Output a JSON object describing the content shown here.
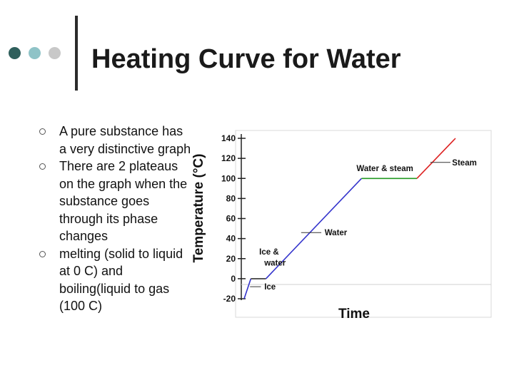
{
  "slide": {
    "title": "Heating Curve for Water",
    "bullets": [
      "A pure substance has a very distinctive graph",
      "There are 2 plateaus on the graph when the substance goes through its phase changes",
      "melting (solid to liquid  at 0 C) and boiling(liquid to gas (100 C)"
    ],
    "dot_colors": [
      "#2f5f5c",
      "#8fc3c7",
      "#c8c8c8"
    ]
  },
  "chart_data": {
    "type": "line",
    "xlabel": "Time",
    "ylabel": "Temperature (°C)",
    "yticks": [
      140,
      120,
      100,
      80,
      60,
      40,
      20,
      0,
      -20
    ],
    "ylim": [
      -20,
      140
    ],
    "series": [
      {
        "name": "Ice",
        "color": "#3333cc",
        "points": [
          [
            0,
            -20
          ],
          [
            0.4,
            0
          ]
        ]
      },
      {
        "name": "Ice & water",
        "color": "#333333",
        "points": [
          [
            0.4,
            0
          ],
          [
            1.3,
            0
          ]
        ]
      },
      {
        "name": "Water",
        "color": "#3333cc",
        "points": [
          [
            1.3,
            0
          ],
          [
            7.0,
            100
          ]
        ]
      },
      {
        "name": "Water & steam",
        "color": "#229922",
        "points": [
          [
            7.0,
            100
          ],
          [
            10.3,
            100
          ]
        ]
      },
      {
        "name": "Steam",
        "color": "#dd2222",
        "points": [
          [
            10.3,
            100
          ],
          [
            12.6,
            140
          ]
        ]
      }
    ],
    "annotations": [
      {
        "text": "Ice",
        "x": 1.2,
        "y": -8
      },
      {
        "text": "Ice &",
        "x": 0.9,
        "y": 27
      },
      {
        "text": "water",
        "x": 1.2,
        "y": 16
      },
      {
        "text": "Water",
        "x": 4.8,
        "y": 46
      },
      {
        "text": "Water & steam",
        "x": 6.7,
        "y": 110
      },
      {
        "text": "Steam",
        "x": 12.4,
        "y": 116
      }
    ]
  }
}
